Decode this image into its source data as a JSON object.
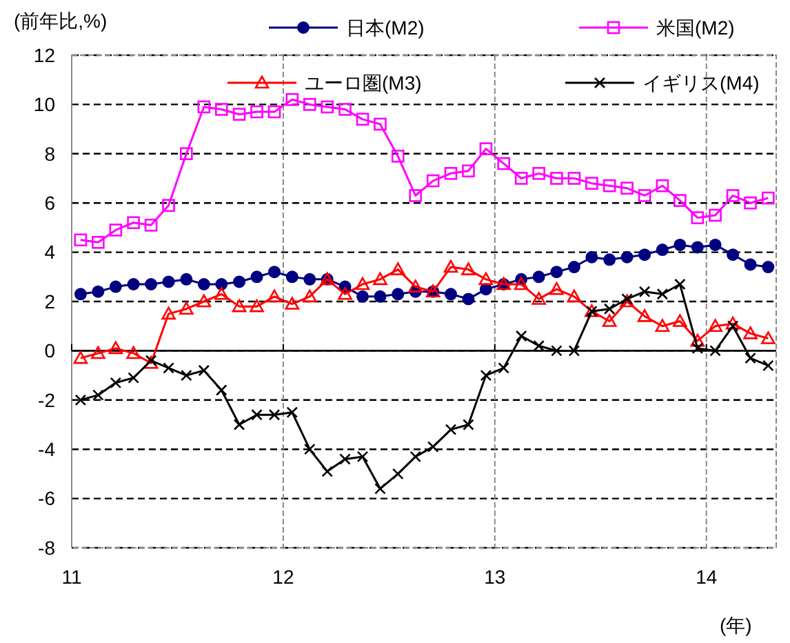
{
  "chart_data": {
    "type": "line",
    "ylabel": "(前年比,%)",
    "xlabel": "(年)",
    "x": [
      11.042,
      11.125,
      11.208,
      11.292,
      11.375,
      11.458,
      11.542,
      11.625,
      11.708,
      11.792,
      11.875,
      11.958,
      12.042,
      12.125,
      12.208,
      12.292,
      12.375,
      12.458,
      12.542,
      12.625,
      12.708,
      12.792,
      12.875,
      12.958,
      13.042,
      13.125,
      13.208,
      13.292,
      13.375,
      13.458,
      13.542,
      13.625,
      13.708,
      13.792,
      13.875,
      13.958,
      14.042,
      14.125,
      14.208,
      14.292
    ],
    "series": [
      {
        "name": "日本(M2)",
        "color": "#000080",
        "marker": "circle",
        "values": [
          2.3,
          2.4,
          2.6,
          2.7,
          2.7,
          2.8,
          2.9,
          2.7,
          2.7,
          2.8,
          3.0,
          3.2,
          3.0,
          2.9,
          2.9,
          2.6,
          2.2,
          2.2,
          2.3,
          2.4,
          2.4,
          2.3,
          2.1,
          2.5,
          2.7,
          2.9,
          3.0,
          3.2,
          3.4,
          3.8,
          3.7,
          3.8,
          3.9,
          4.1,
          4.3,
          4.2,
          4.3,
          3.9,
          3.5,
          3.4
        ]
      },
      {
        "name": "米国(M2)",
        "color": "#ff00ff",
        "marker": "square",
        "values": [
          4.5,
          4.4,
          4.9,
          5.2,
          5.1,
          5.9,
          8.0,
          9.9,
          9.8,
          9.6,
          9.7,
          9.7,
          10.2,
          10.0,
          9.9,
          9.8,
          9.4,
          9.2,
          7.9,
          6.3,
          6.9,
          7.2,
          7.3,
          8.2,
          7.6,
          7.0,
          7.2,
          7.0,
          7.0,
          6.8,
          6.7,
          6.6,
          6.3,
          6.7,
          6.1,
          5.4,
          5.5,
          6.3,
          6.0,
          6.2
        ]
      },
      {
        "name": "ユーロ圏(M3)",
        "color": "#ff0000",
        "marker": "triangle",
        "values": [
          -0.3,
          -0.1,
          0.1,
          -0.1,
          -0.5,
          1.5,
          1.7,
          2.0,
          2.3,
          1.8,
          1.8,
          2.2,
          1.9,
          2.2,
          2.9,
          2.3,
          2.7,
          2.9,
          3.3,
          2.6,
          2.4,
          3.4,
          3.3,
          2.9,
          2.7,
          2.7,
          2.1,
          2.5,
          2.2,
          1.6,
          1.2,
          2.0,
          1.4,
          1.0,
          1.2,
          0.4,
          1.0,
          1.1,
          0.7,
          0.5
        ]
      },
      {
        "name": "イギリス(M4)",
        "color": "#000000",
        "marker": "cross",
        "values": [
          -2.0,
          -1.8,
          -1.3,
          -1.1,
          -0.4,
          -0.7,
          -1.0,
          -0.8,
          -1.6,
          -3.0,
          -2.6,
          -2.6,
          -2.5,
          -4.0,
          -4.9,
          -4.4,
          -4.3,
          -5.6,
          -5.0,
          -4.3,
          -3.9,
          -3.2,
          -3.0,
          -1.0,
          -0.7,
          0.6,
          0.2,
          0.0,
          0.0,
          1.6,
          1.7,
          2.1,
          2.4,
          2.3,
          2.7,
          0.1,
          0.0,
          1.0,
          -0.3,
          -0.6
        ]
      }
    ],
    "xlim": [
      11,
      14.33
    ],
    "xticks": [
      11,
      12,
      13,
      14
    ],
    "ylim": [
      -8,
      12
    ],
    "yticks": [
      -8,
      -6,
      -4,
      -2,
      0,
      2,
      4,
      6,
      8,
      10,
      12
    ],
    "grid": true,
    "legend": "top",
    "line_style": "solid"
  }
}
